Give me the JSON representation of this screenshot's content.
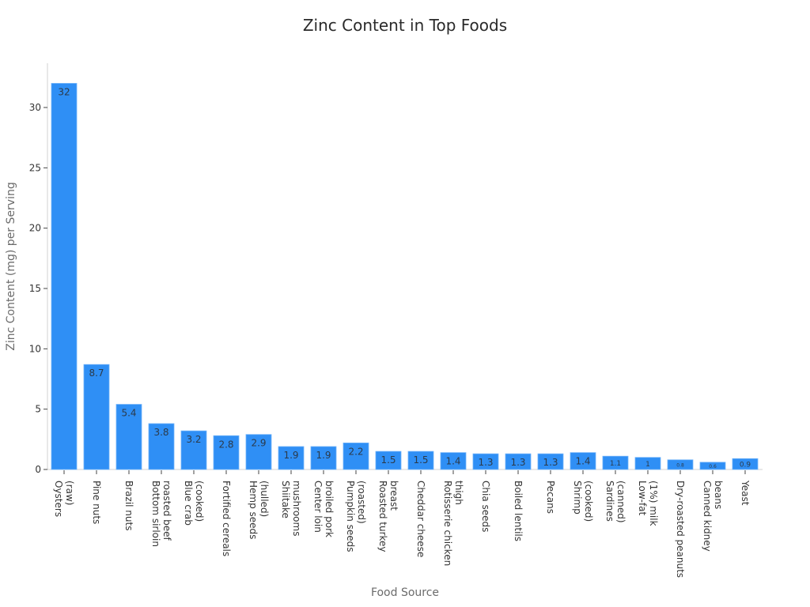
{
  "chart_data": {
    "type": "bar",
    "title": "Zinc Content in Top Foods",
    "xlabel": "Food Source",
    "ylabel": "Zinc Content (mg) per Serving",
    "ylim": [
      0,
      33.5
    ],
    "yticks": [
      0,
      5,
      10,
      15,
      20,
      25,
      30
    ],
    "grid": false,
    "legend": null,
    "bar_color": "#2f8ff5",
    "categories": [
      "Oysters (raw)",
      "Pine nuts",
      "Brazil nuts",
      "Bottom sirloin roasted beef",
      "Blue crab (cooked)",
      "Fortified cereals",
      "Hemp seeds (hulled)",
      "Shiitake mushrooms",
      "Center loin broiled pork",
      "Pumpkin seeds (roasted)",
      "Roasted turkey breast",
      "Cheddar cheese",
      "Rotisserie chicken thigh",
      "Chia seeds",
      "Boiled lentils",
      "Pecans",
      "Shrimp (cooked)",
      "Sardines (canned)",
      "Low-fat (1%) milk",
      "Dry-roasted peanuts",
      "Canned kidney beans",
      "Yeast"
    ],
    "category_lines": [
      [
        "Oysters",
        "(raw)"
      ],
      [
        "Pine nuts"
      ],
      [
        "Brazil nuts"
      ],
      [
        "Bottom sirloin",
        "roasted beef"
      ],
      [
        "Blue crab",
        "(cooked)"
      ],
      [
        "Fortified cereals"
      ],
      [
        "Hemp seeds",
        "(hulled)"
      ],
      [
        "Shiitake",
        "mushrooms"
      ],
      [
        "Center loin",
        "broiled pork"
      ],
      [
        "Pumpkin seeds",
        "(roasted)"
      ],
      [
        "Roasted turkey",
        "breast"
      ],
      [
        "Cheddar cheese"
      ],
      [
        "Rotisserie chicken",
        "thigh"
      ],
      [
        "Chia seeds"
      ],
      [
        "Boiled lentils"
      ],
      [
        "Pecans"
      ],
      [
        "Shrimp",
        "(cooked)"
      ],
      [
        "Sardines",
        "(canned)"
      ],
      [
        "Low-fat",
        "(1%) milk"
      ],
      [
        "Dry-roasted peanuts"
      ],
      [
        "Canned kidney",
        "beans"
      ],
      [
        "Yeast"
      ]
    ],
    "values": [
      32,
      8.7,
      5.4,
      3.8,
      3.2,
      2.8,
      2.9,
      1.9,
      1.9,
      2.2,
      1.5,
      1.5,
      1.4,
      1.3,
      1.3,
      1.3,
      1.4,
      1.1,
      1,
      0.8,
      0.6,
      0.9
    ],
    "value_labels": [
      "32",
      "8.7",
      "5.4",
      "3.8",
      "3.2",
      "2.8",
      "2.9",
      "1.9",
      "1.9",
      "2.2",
      "1.5",
      "1.5",
      "1.4",
      "1.3",
      "1.3",
      "1.3",
      "1.4",
      "1.1",
      "1",
      "0.8",
      "0.6",
      "0.9"
    ]
  }
}
